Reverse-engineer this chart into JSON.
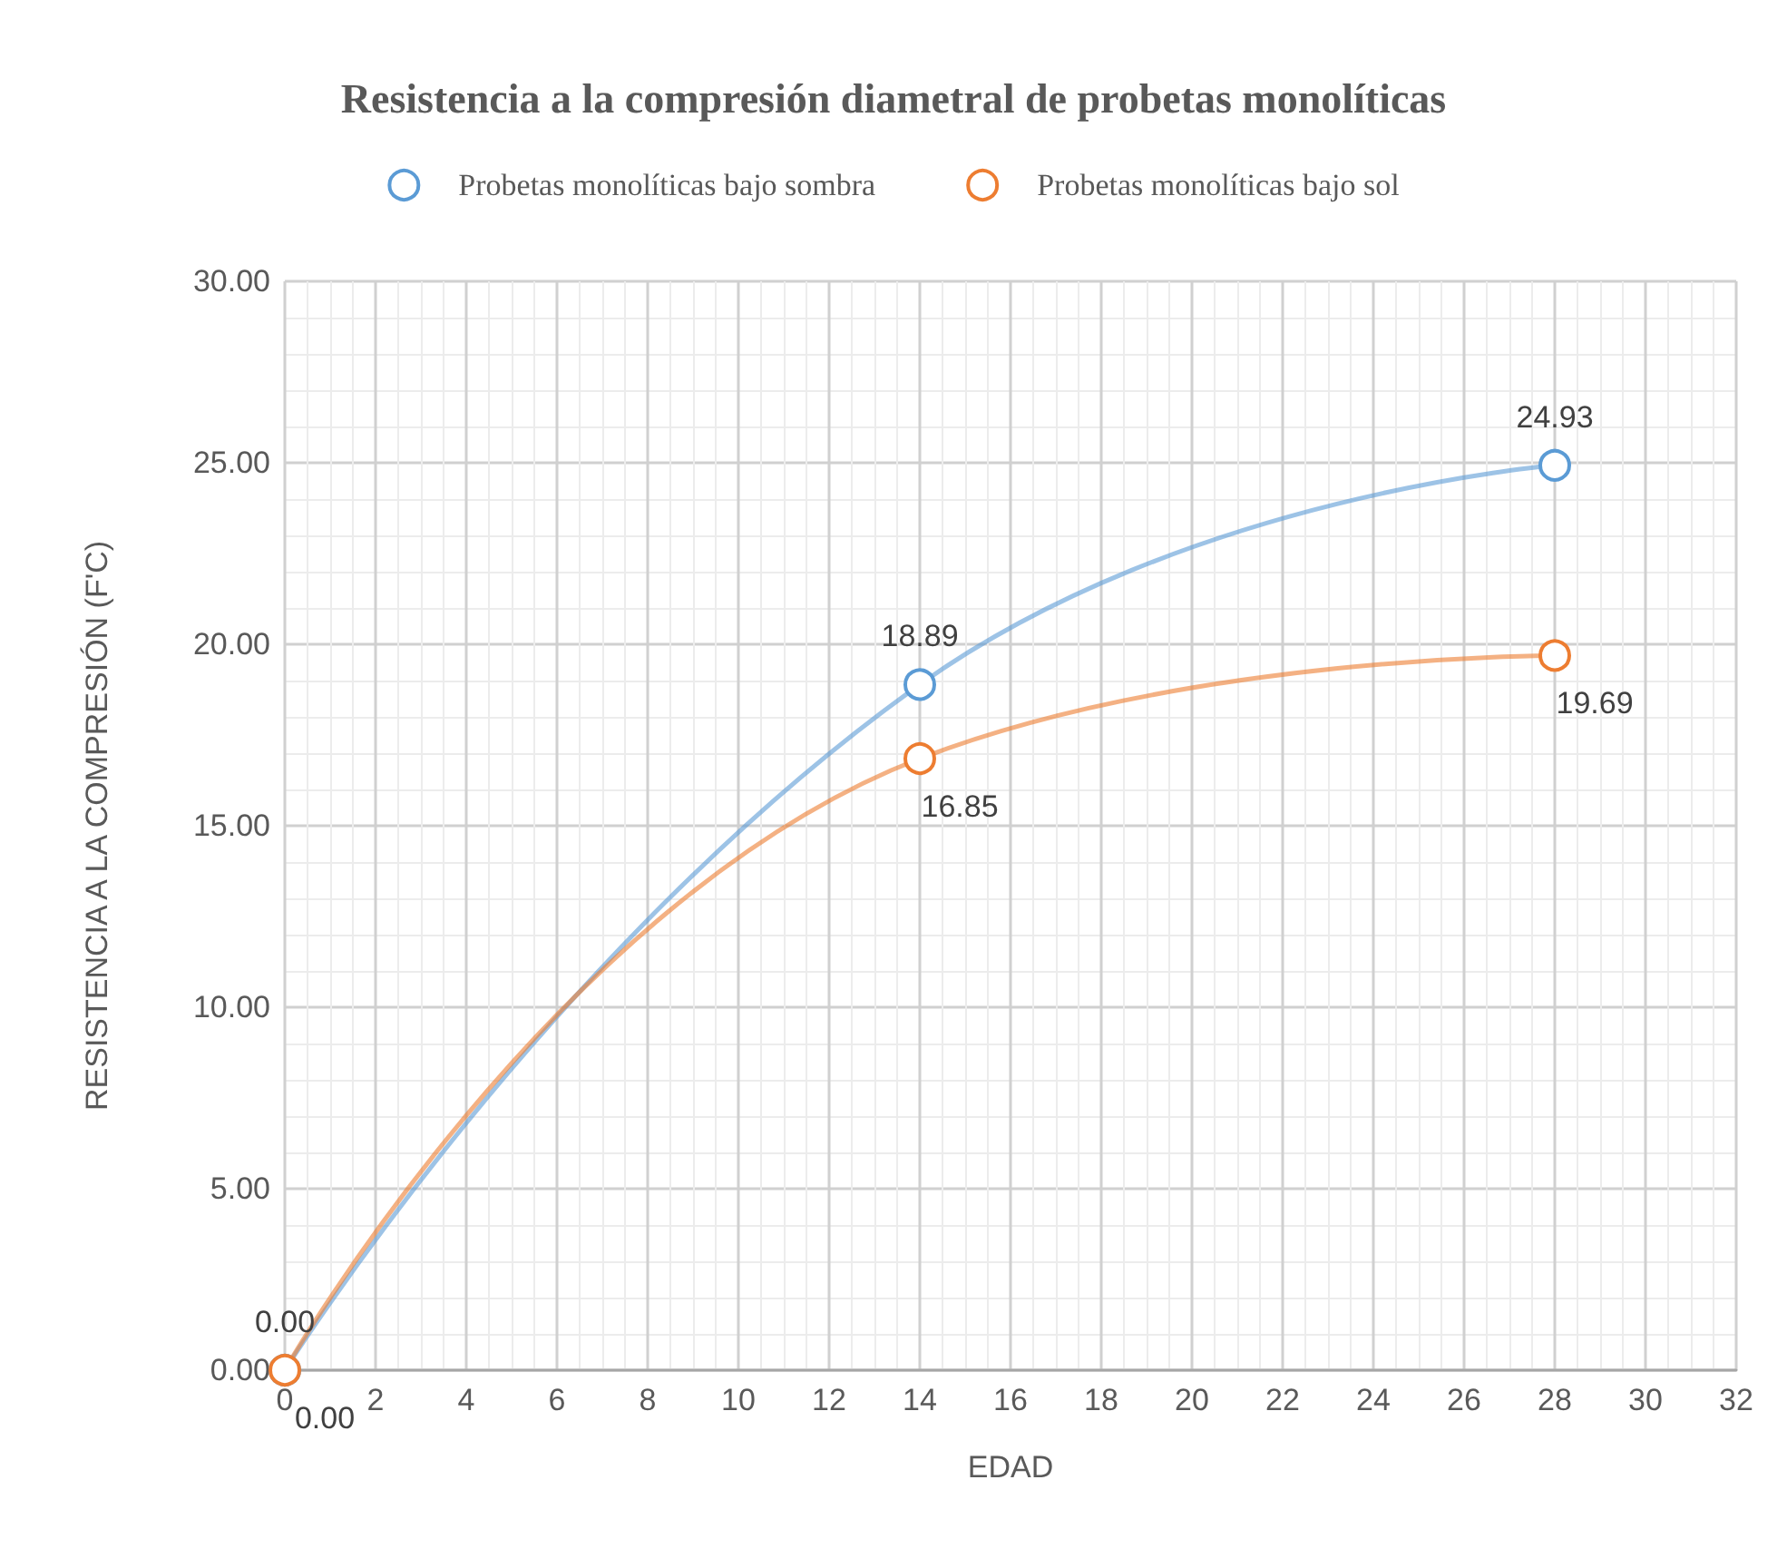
{
  "chart_data": {
    "type": "line",
    "title": "Resistencia a la compresión diametral de probetas monolíticas",
    "xlabel": "EDAD",
    "ylabel": "RESISTENCIA A LA COMPRESIÓN (F'C)",
    "x": [
      0,
      14,
      28
    ],
    "series": [
      {
        "name": "Probetas monolíticas bajo sombra",
        "color": "#5b9bd5",
        "values": [
          0,
          18.89,
          24.93
        ],
        "value_labels": [
          "0.00",
          "18.89",
          "24.93"
        ]
      },
      {
        "name": "Probetas monolíticas bajo sol",
        "color": "#ed7d31",
        "values": [
          0,
          16.85,
          19.69
        ],
        "value_labels": [
          "0.00",
          "16.85",
          "19.69"
        ]
      }
    ],
    "xlim": [
      0,
      32
    ],
    "xticks": [
      0,
      2,
      4,
      6,
      8,
      10,
      12,
      14,
      16,
      18,
      20,
      22,
      24,
      26,
      28,
      30,
      32
    ],
    "ylim": [
      0,
      30
    ],
    "yticks": [
      {
        "value": 0,
        "label": "0.00"
      },
      {
        "value": 5,
        "label": "5.00"
      },
      {
        "value": 10,
        "label": "10.00"
      },
      {
        "value": 15,
        "label": "15.00"
      },
      {
        "value": 20,
        "label": "20.00"
      },
      {
        "value": 25,
        "label": "25.00"
      },
      {
        "value": 30,
        "label": "30.00"
      }
    ],
    "grid": true,
    "legend": "top",
    "marker": "circle",
    "line_style": "solid"
  }
}
